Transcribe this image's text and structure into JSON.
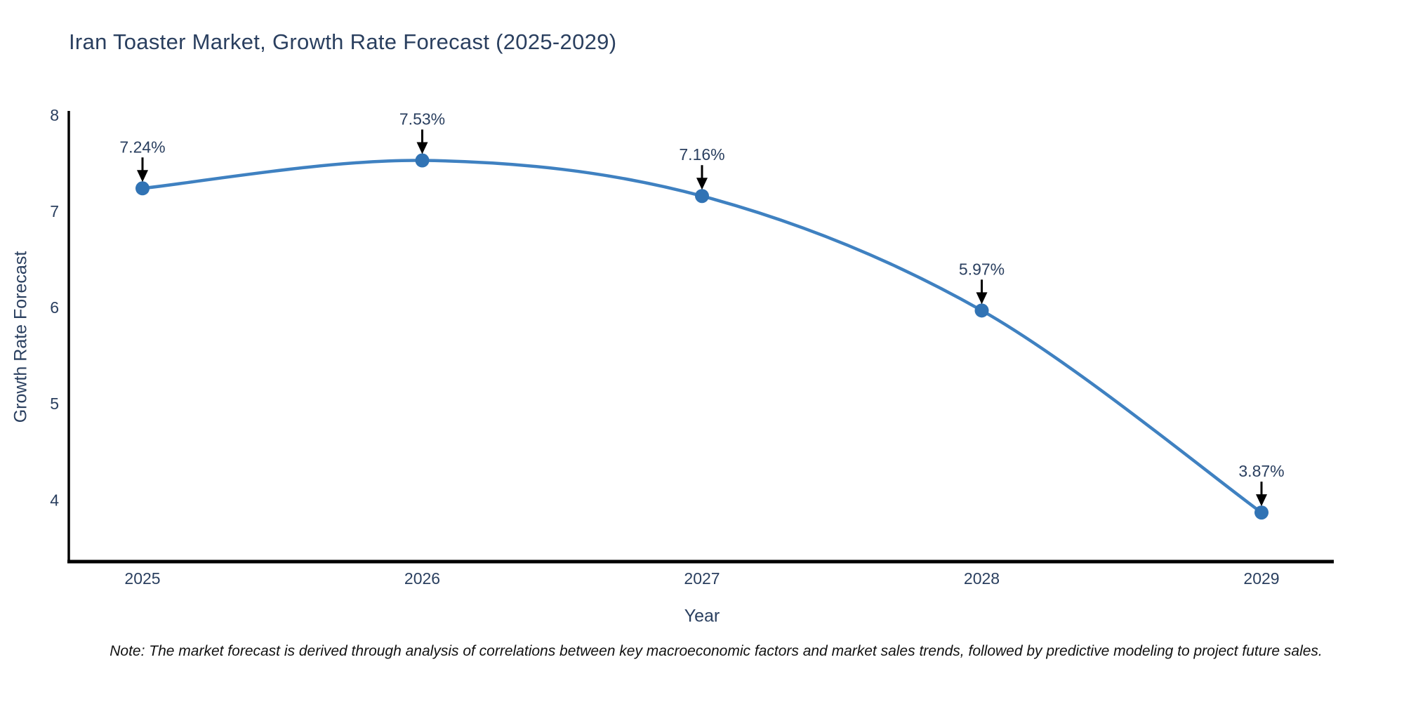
{
  "page": {
    "background": "#ffffff"
  },
  "chart_data": {
    "type": "line",
    "title": "Iran Toaster Market, Growth Rate Forecast (2025-2029)",
    "xlabel": "Year",
    "ylabel": "Growth Rate Forecast",
    "categories": [
      "2025",
      "2026",
      "2027",
      "2028",
      "2029"
    ],
    "series": [
      {
        "name": "Growth Rate Forecast",
        "values": [
          7.24,
          7.53,
          7.16,
          5.97,
          3.87
        ]
      }
    ],
    "point_labels": [
      "7.24%",
      "7.53%",
      "7.16%",
      "5.97%",
      "3.87%"
    ],
    "yticks": [
      "4",
      "5",
      "6",
      "7",
      "8"
    ],
    "ytick_values": [
      4,
      5,
      6,
      7,
      8
    ],
    "ylim": [
      3.36,
      8.03
    ],
    "grid": false,
    "legend": "none",
    "marker_style": "circle-with-down-arrow-annotation",
    "colors": {
      "line": "#3f81c1",
      "marker": "#3173b4",
      "axis": "#000000",
      "tick_text": "#2a3f5f",
      "annotation_text": "#2a3f5f",
      "arrow": "#000000",
      "title_text": "#2a3f5f"
    }
  },
  "note": "Note: The market forecast is derived through analysis of correlations between key macroeconomic factors and market sales trends, followed by predictive modeling to project future sales."
}
